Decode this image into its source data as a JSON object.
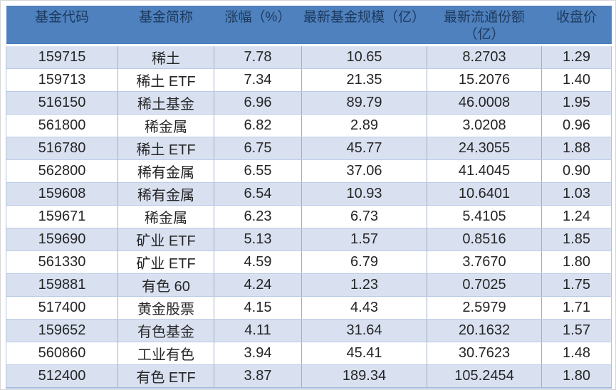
{
  "table": {
    "columns": [
      {
        "label": "基金代码"
      },
      {
        "label": "基金简称"
      },
      {
        "label": "涨幅（%）"
      },
      {
        "label": "最新基金规模（亿）"
      },
      {
        "label": "最新流通份额",
        "sublabel": "（亿）"
      },
      {
        "label": "收盘价"
      }
    ],
    "rows": [
      [
        "159715",
        "稀土",
        "7.78",
        "10.65",
        "8.2703",
        "1.29"
      ],
      [
        "159713",
        "稀土 ETF",
        "7.34",
        "21.35",
        "15.2076",
        "1.40"
      ],
      [
        "516150",
        "稀土基金",
        "6.96",
        "89.79",
        "46.0008",
        "1.95"
      ],
      [
        "561800",
        "稀金属",
        "6.82",
        "2.89",
        "3.0208",
        "0.96"
      ],
      [
        "516780",
        "稀土 ETF",
        "6.75",
        "45.77",
        "24.3055",
        "1.88"
      ],
      [
        "562800",
        "稀有金属",
        "6.55",
        "37.06",
        "41.4045",
        "0.90"
      ],
      [
        "159608",
        "稀有金属",
        "6.54",
        "10.93",
        "10.6401",
        "1.03"
      ],
      [
        "159671",
        "稀金属",
        "6.23",
        "6.73",
        "5.4105",
        "1.24"
      ],
      [
        "159690",
        "矿业 ETF",
        "5.13",
        "1.57",
        "0.8516",
        "1.85"
      ],
      [
        "561330",
        "矿业 ETF",
        "4.59",
        "6.79",
        "3.7670",
        "1.80"
      ],
      [
        "159881",
        "有色 60",
        "4.24",
        "1.23",
        "0.7025",
        "1.75"
      ],
      [
        "517400",
        "黄金股票",
        "4.15",
        "4.43",
        "2.5979",
        "1.71"
      ],
      [
        "159652",
        "有色基金",
        "4.11",
        "31.64",
        "20.1632",
        "1.57"
      ],
      [
        "560860",
        "工业有色",
        "3.94",
        "45.41",
        "30.7623",
        "1.48"
      ],
      [
        "512400",
        "有色 ETF",
        "3.87",
        "189.34",
        "105.2454",
        "1.80"
      ]
    ],
    "colors": {
      "header_bg": "#4e81bd",
      "header_text": "#1e3a5f",
      "row_band": "#d9e1f1",
      "row_alt": "#ffffff",
      "grid_vertical": "#9faec9",
      "grid_horizontal": "#bbcbe6",
      "table_bottom_border": "#a5bbdc",
      "body_text": "#262626"
    }
  }
}
